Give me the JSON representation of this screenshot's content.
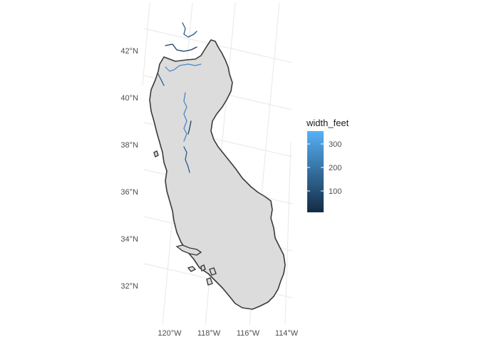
{
  "map": {
    "lat_labels": [
      "42°N",
      "40°N",
      "38°N",
      "36°N",
      "34°N",
      "32°N"
    ],
    "lon_labels": [
      "120°W",
      "118°W",
      "116°W",
      "114°W"
    ],
    "legend": {
      "title": "width_feet",
      "labels": [
        "300",
        "200",
        "100"
      ],
      "color_low": "#132b43",
      "color_high": "#56b1f7"
    },
    "colors": {
      "land": "#dcdcdc",
      "outline": "#3a3a3a",
      "graticule": "#ebebeb",
      "river_dark": "#1d3c5e",
      "river_light": "#4a86c4"
    }
  }
}
